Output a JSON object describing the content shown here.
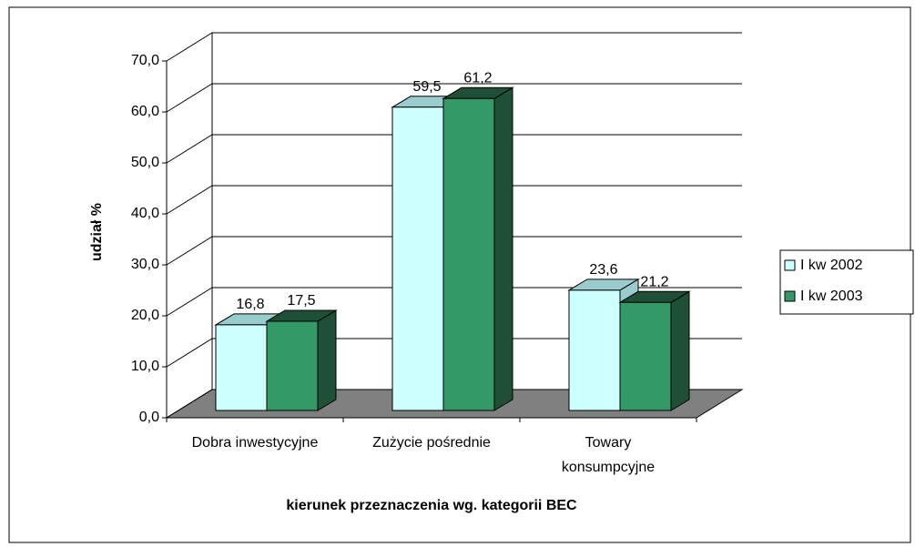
{
  "chart_data": {
    "type": "bar3d",
    "x_label": "kierunek przeznaczenia wg. kategorii BEC",
    "y_label": "udział %",
    "categories": [
      [
        "Dobra inwestycyjne"
      ],
      [
        "Zużycie pośrednie"
      ],
      [
        "Towary",
        "konsumpcyjne"
      ]
    ],
    "series": [
      {
        "name": "I kw 2002",
        "color": "#ccffff",
        "side_color": "#99cccc",
        "values": [
          16.8,
          59.5,
          23.6
        ],
        "value_labels": [
          "16,8",
          "59,5",
          "23,6"
        ]
      },
      {
        "name": "I kw 2003",
        "color": "#339966",
        "side_color": "#1f4f37",
        "values": [
          17.5,
          61.2,
          21.2
        ],
        "value_labels": [
          "17,5",
          "61,2",
          "21,2"
        ]
      }
    ],
    "ylim": [
      0,
      70
    ],
    "yticks": [
      {
        "value": 0,
        "label": "0,0"
      },
      {
        "value": 10,
        "label": "10,0"
      },
      {
        "value": 20,
        "label": "20,0"
      },
      {
        "value": 30,
        "label": "30,0"
      },
      {
        "value": 40,
        "label": "40,0"
      },
      {
        "value": 50,
        "label": "50,0"
      },
      {
        "value": 60,
        "label": "60,0"
      },
      {
        "value": 70,
        "label": "70,0"
      }
    ],
    "grid": true,
    "legend": "right",
    "floor_color": "#808080"
  }
}
